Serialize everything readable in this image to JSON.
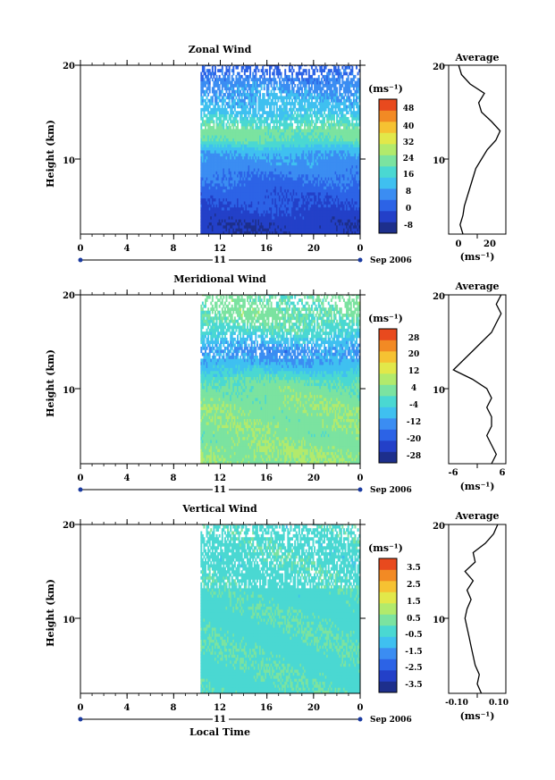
{
  "panels": [
    {
      "title": "Zonal Wind",
      "ylabel": "Height (km)",
      "yticks": [
        "10",
        "20"
      ],
      "xticks": [
        "0",
        "4",
        "8",
        "12",
        "16",
        "20",
        "0"
      ],
      "date_day": "11",
      "date_label": "Sep 2006",
      "unit_label": "(ms⁻¹)",
      "colorbar_ticks": [
        "48",
        "40",
        "32",
        "24",
        "16",
        "8",
        "0",
        "-8"
      ],
      "avg_title": "Average",
      "avg_yticks": [
        "10",
        "20"
      ],
      "avg_xticks": [
        "0",
        "20"
      ],
      "avg_unit": "(ms⁻¹)"
    },
    {
      "title": "Meridional Wind",
      "ylabel": "Height (km)",
      "yticks": [
        "10",
        "20"
      ],
      "xticks": [
        "0",
        "4",
        "8",
        "12",
        "16",
        "20",
        "0"
      ],
      "date_day": "11",
      "date_label": "Sep 2006",
      "unit_label": "(ms⁻¹)",
      "colorbar_ticks": [
        "28",
        "20",
        "12",
        "4",
        "-4",
        "-12",
        "-20",
        "-28"
      ],
      "avg_title": "Average",
      "avg_yticks": [
        "10",
        "20"
      ],
      "avg_xticks": [
        "-6",
        "6"
      ],
      "avg_unit": "(ms⁻¹)"
    },
    {
      "title": "Vertical Wind",
      "ylabel": "Height (km)",
      "yticks": [
        "10",
        "20"
      ],
      "xticks": [
        "0",
        "4",
        "8",
        "12",
        "16",
        "20",
        "0"
      ],
      "date_day": "11",
      "date_label": "Sep 2006",
      "unit_label": "(ms⁻¹)",
      "colorbar_ticks": [
        "3.5",
        "2.5",
        "1.5",
        "0.5",
        "-0.5",
        "-1.5",
        "-2.5",
        "-3.5"
      ],
      "avg_title": "Average",
      "avg_yticks": [
        "10",
        "20"
      ],
      "avg_xticks": [
        "-0.10",
        "0.10"
      ],
      "avg_unit": "(ms⁻¹)"
    }
  ],
  "xlabel": "Local Time",
  "colormap": [
    "#1d2f8c",
    "#2340c8",
    "#2c63e6",
    "#3b8df2",
    "#3fc0f0",
    "#4ad8d2",
    "#7be3a0",
    "#b2ea6c",
    "#e2e84a",
    "#f6c232",
    "#f28a24",
    "#e84a1e"
  ],
  "chart_data": [
    {
      "type": "heatmap",
      "title": "Zonal Wind",
      "xlabel": "Local Time",
      "ylabel": "Height (km)",
      "x_range_hours": [
        0,
        24
      ],
      "y_range_km": [
        2,
        20
      ],
      "data_start_hour": 10.3,
      "colorbar_range": [
        -8,
        52
      ],
      "colorbar_units": "ms^-1",
      "profile_heights_km": [
        2,
        3,
        4,
        5,
        6,
        7,
        8,
        9,
        10,
        11,
        12,
        13,
        14,
        15,
        16,
        17,
        18,
        19,
        20
      ],
      "field_mean_values": [
        -2,
        -2,
        0,
        2,
        3,
        5,
        7,
        9,
        11,
        14,
        22,
        24,
        20,
        15,
        14,
        12,
        10,
        6,
        4
      ],
      "average_profile": {
        "x_range": [
          -5,
          35
        ],
        "height_km": [
          2,
          3,
          4,
          5,
          6,
          7,
          8,
          9,
          10,
          11,
          12,
          13,
          14,
          15,
          16,
          17,
          18,
          19,
          20
        ],
        "value": [
          5,
          3,
          5,
          6,
          8,
          10,
          12,
          14,
          18,
          22,
          28,
          31,
          25,
          18,
          16,
          20,
          10,
          4,
          2
        ]
      }
    },
    {
      "type": "heatmap",
      "title": "Meridional Wind",
      "xlabel": "Local Time",
      "ylabel": "Height (km)",
      "x_range_hours": [
        0,
        24
      ],
      "y_range_km": [
        2,
        20
      ],
      "data_start_hour": 10.3,
      "colorbar_range": [
        -28,
        32
      ],
      "colorbar_units": "ms^-1",
      "profile_heights_km": [
        2,
        3,
        4,
        5,
        6,
        7,
        8,
        9,
        10,
        11,
        12,
        13,
        14,
        15,
        16,
        17,
        18,
        19,
        20
      ],
      "field_mean_values": [
        6,
        7,
        6,
        5,
        6,
        5,
        6,
        5,
        4,
        2,
        -4,
        -8,
        -10,
        -6,
        0,
        2,
        4,
        3,
        4
      ],
      "average_profile": {
        "x_range": [
          -6,
          6
        ],
        "height_km": [
          2,
          3,
          4,
          5,
          6,
          7,
          8,
          9,
          10,
          11,
          12,
          13,
          14,
          15,
          16,
          17,
          18,
          19,
          20
        ],
        "value": [
          3,
          4,
          3,
          2,
          3,
          3,
          2,
          3,
          2,
          -1,
          -5,
          -3,
          -1,
          1,
          3,
          4,
          5,
          4,
          5
        ]
      }
    },
    {
      "type": "heatmap",
      "title": "Vertical Wind",
      "xlabel": "Local Time",
      "ylabel": "Height (km)",
      "x_range_hours": [
        0,
        24
      ],
      "y_range_km": [
        2,
        20
      ],
      "data_start_hour": 10.3,
      "colorbar_range": [
        -3.5,
        4.0
      ],
      "colorbar_units": "ms^-1",
      "profile_heights_km": [
        2,
        3,
        4,
        5,
        6,
        7,
        8,
        9,
        10,
        11,
        12,
        13,
        14,
        15,
        16,
        17,
        18,
        19,
        20
      ],
      "field_mean_values": [
        0.1,
        0.1,
        0.1,
        0.1,
        0.1,
        0.1,
        0.1,
        0.1,
        0.1,
        0.1,
        0,
        0,
        0,
        0,
        0,
        0,
        0,
        0,
        0
      ],
      "average_profile": {
        "x_range": [
          -0.14,
          0.14
        ],
        "height_km": [
          2,
          3,
          4,
          5,
          6,
          7,
          8,
          9,
          10,
          11,
          12,
          13,
          14,
          15,
          16,
          17,
          18,
          19,
          20
        ],
        "value": [
          0.02,
          0.0,
          0.01,
          -0.01,
          -0.02,
          -0.03,
          -0.04,
          -0.05,
          -0.06,
          -0.05,
          -0.03,
          -0.05,
          -0.02,
          -0.06,
          -0.01,
          -0.02,
          0.04,
          0.08,
          0.1
        ]
      }
    }
  ]
}
